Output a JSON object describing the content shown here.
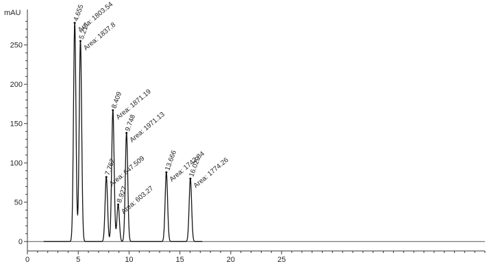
{
  "chart_data": {
    "type": "line",
    "ylabel": "mAU",
    "xlabel": "",
    "xlim": [
      0,
      45
    ],
    "ylim": [
      -12,
      295
    ],
    "x_ticks": [
      0,
      5,
      10,
      15,
      20,
      25
    ],
    "y_ticks": [
      0,
      50,
      100,
      150,
      200,
      250
    ],
    "grid": false,
    "baseline_start": 1.6,
    "baseline_end": 17.2,
    "series": [
      {
        "values": [
          {
            "x": 4.655,
            "y": 278
          },
          {
            "x": 5.217,
            "y": 255
          },
          {
            "x": 7.762,
            "y": 82
          },
          {
            "x": 8.409,
            "y": 167
          },
          {
            "x": 8.927,
            "y": 47
          },
          {
            "x": 9.748,
            "y": 138
          },
          {
            "x": 13.666,
            "y": 88
          },
          {
            "x": 16.029,
            "y": 80
          }
        ]
      }
    ],
    "peaks": [
      {
        "rt": "4.655",
        "x": 4.655,
        "y": 278,
        "area": "1803.54"
      },
      {
        "rt": "5.217",
        "x": 5.217,
        "y": 255,
        "area": "1837.8"
      },
      {
        "rt": "7.762",
        "x": 7.762,
        "y": 82,
        "area": "647.509"
      },
      {
        "rt": "8.409",
        "x": 8.409,
        "y": 167,
        "area": "1871.19"
      },
      {
        "rt": "8.927",
        "x": 8.927,
        "y": 47,
        "area": "603.27"
      },
      {
        "rt": "9.748",
        "x": 9.748,
        "y": 138,
        "area": "1971.13"
      },
      {
        "rt": "13.666",
        "x": 13.666,
        "y": 88,
        "area": "1742.84"
      },
      {
        "rt": "16.029",
        "x": 16.029,
        "y": 80,
        "area": "1774.26"
      }
    ],
    "area_prefix": "Area: "
  }
}
